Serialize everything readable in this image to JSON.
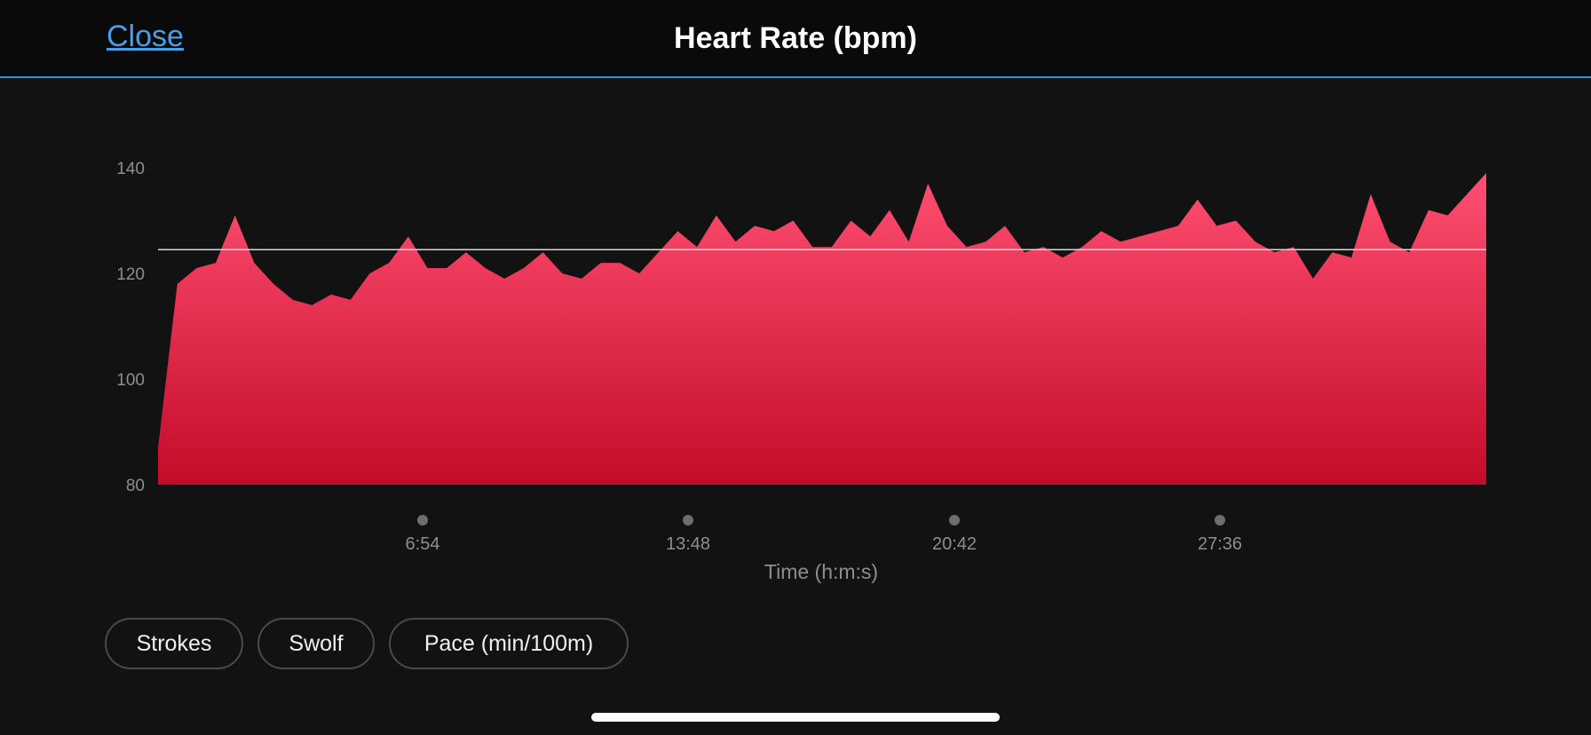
{
  "header": {
    "close_label": "Close",
    "title": "Heart Rate (bpm)"
  },
  "chart_data": {
    "type": "area",
    "title": "Heart Rate (bpm)",
    "xlabel": "Time (h:m:s)",
    "ylabel": "",
    "ylim": [
      80,
      140
    ],
    "y_ticks": [
      140,
      120,
      100,
      80
    ],
    "x_ticks": [
      "6:54",
      "13:48",
      "20:42",
      "27:36"
    ],
    "reference_line": 124.5,
    "fill_color_top": "#ff4f72",
    "fill_color_bottom": "#c40b2a",
    "x_minutes": [
      0,
      0.5,
      1,
      1.5,
      2,
      2.5,
      3,
      3.5,
      4,
      4.5,
      5,
      5.5,
      6,
      6.5,
      7,
      7.5,
      8,
      8.5,
      9,
      9.5,
      10,
      10.5,
      11,
      11.5,
      12,
      12.5,
      13,
      13.5,
      14,
      14.5,
      15,
      15.5,
      16,
      16.5,
      17,
      17.5,
      18,
      18.5,
      19,
      19.5,
      20,
      20.5,
      21,
      21.5,
      22,
      22.5,
      23,
      23.5,
      24,
      24.5,
      25,
      25.5,
      26,
      26.5,
      27,
      27.5,
      28,
      28.5,
      29,
      29.5,
      30,
      30.5,
      31,
      31.5,
      32,
      32.5,
      33,
      33.5,
      34,
      34.5
    ],
    "values": [
      87,
      118,
      121,
      122,
      131,
      122,
      118,
      115,
      114,
      116,
      115,
      120,
      122,
      127,
      121,
      121,
      124,
      121,
      119,
      121,
      124,
      120,
      119,
      122,
      122,
      120,
      124,
      128,
      125,
      131,
      126,
      129,
      128,
      130,
      125,
      125,
      130,
      127,
      132,
      126,
      137,
      129,
      125,
      126,
      129,
      124,
      125,
      123,
      125,
      128,
      126,
      127,
      128,
      129,
      134,
      129,
      130,
      126,
      124,
      125,
      119,
      124,
      123,
      135,
      126,
      124,
      132,
      131,
      135,
      139
    ],
    "grid": false,
    "legend": "none"
  },
  "filters": [
    "Strokes",
    "Swolf",
    "Pace (min/100m)"
  ]
}
